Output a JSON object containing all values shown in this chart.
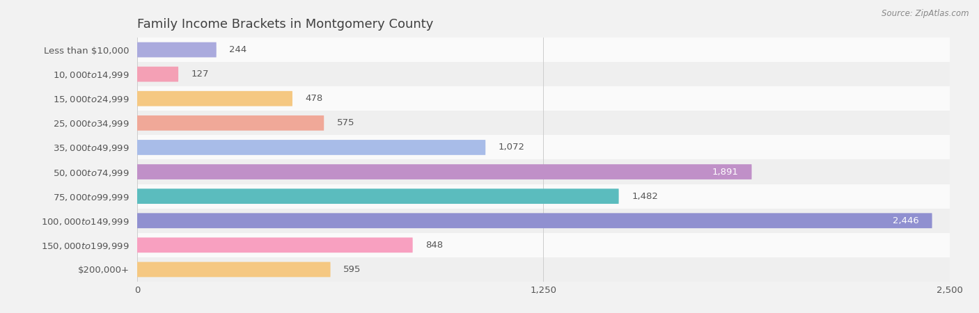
{
  "title": "Family Income Brackets in Montgomery County",
  "source": "Source: ZipAtlas.com",
  "categories": [
    "Less than $10,000",
    "$10,000 to $14,999",
    "$15,000 to $24,999",
    "$25,000 to $34,999",
    "$35,000 to $49,999",
    "$50,000 to $74,999",
    "$75,000 to $99,999",
    "$100,000 to $149,999",
    "$150,000 to $199,999",
    "$200,000+"
  ],
  "values": [
    244,
    127,
    478,
    575,
    1072,
    1891,
    1482,
    2446,
    848,
    595
  ],
  "colors": [
    "#aaaadd",
    "#f4a0b5",
    "#f5c882",
    "#f0a898",
    "#a8bce8",
    "#c090c8",
    "#5bbcbe",
    "#9090d0",
    "#f8a0c0",
    "#f5c882"
  ],
  "xlim": [
    0,
    2500
  ],
  "xticks": [
    0,
    1250,
    2500
  ],
  "bar_height": 0.62,
  "background_color": "#f2f2f2",
  "row_bg_light": "#fafafa",
  "row_bg_dark": "#efefef",
  "title_color": "#404040",
  "label_color": "#555555",
  "value_color": "#555555",
  "value_color_white": "#ffffff",
  "title_fontsize": 13,
  "label_fontsize": 9.5,
  "value_fontsize": 9.5,
  "tick_fontsize": 9.5
}
